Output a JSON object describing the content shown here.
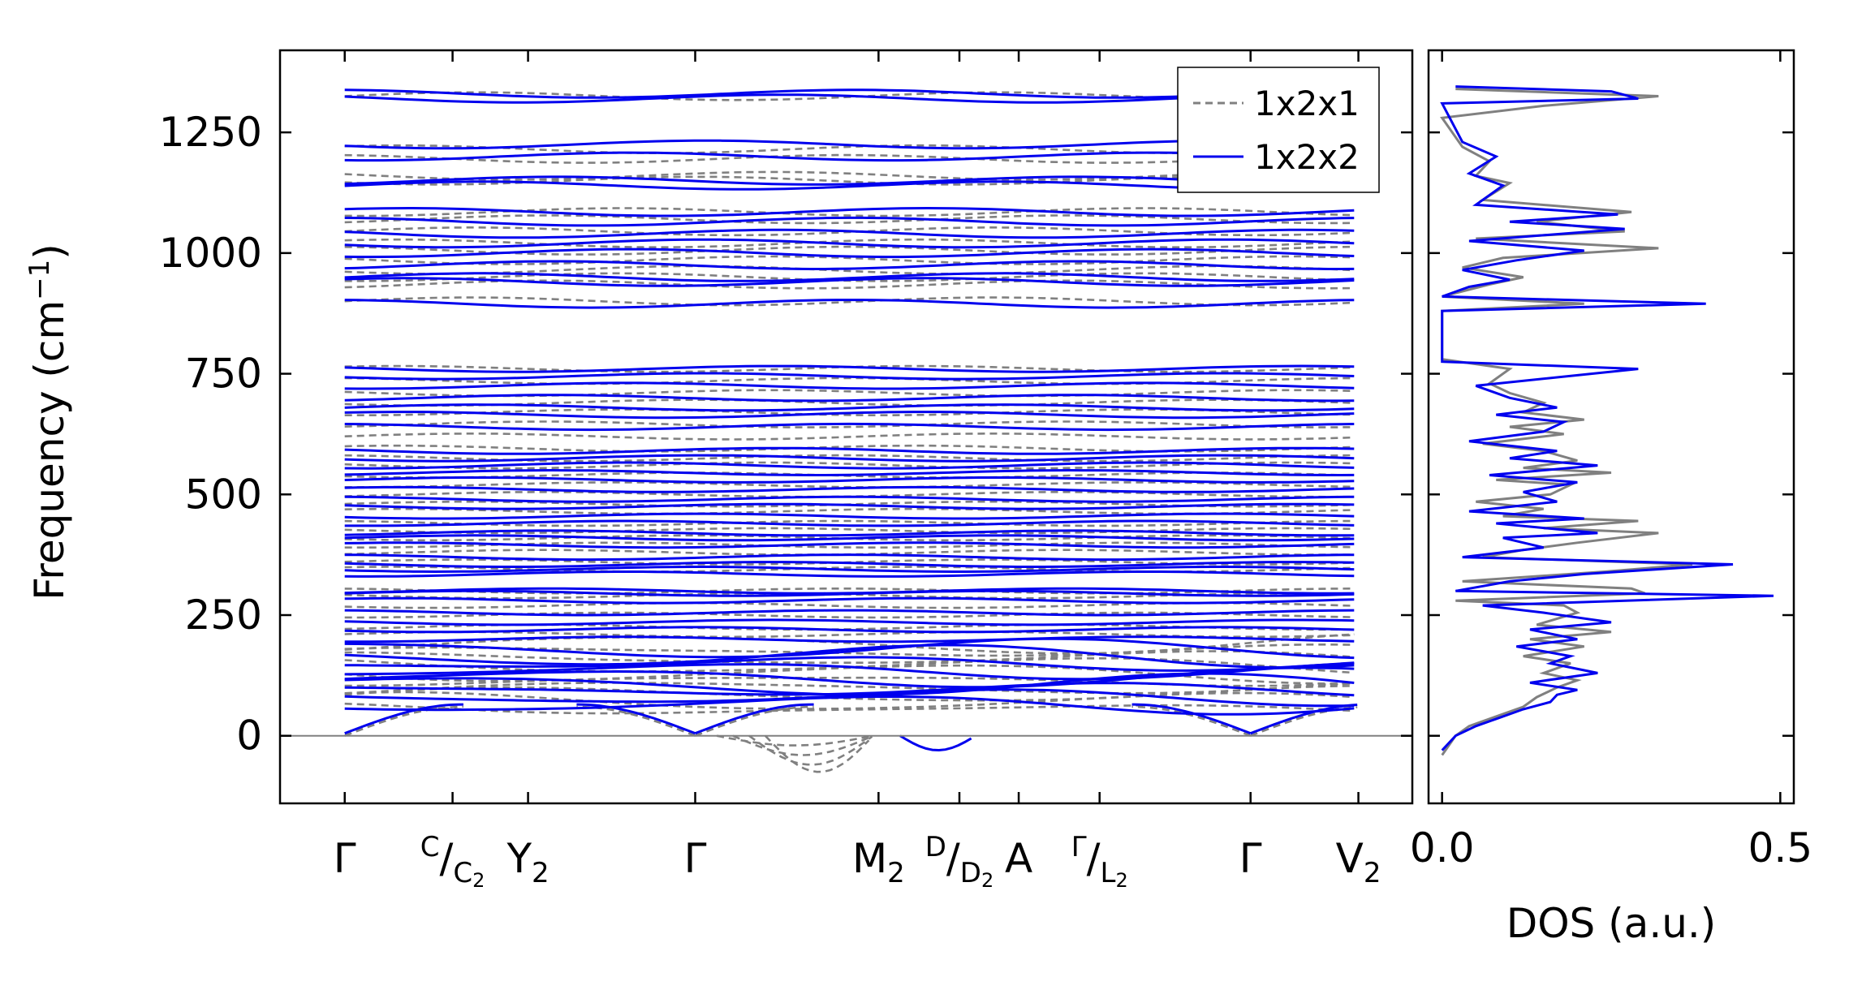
{
  "chart_data": [
    {
      "type": "line",
      "panel": "band-structure",
      "ylabel": "Frequency (cm",
      "ylabel_sup": "−1",
      "ylabel_close": ")",
      "xlabel": "",
      "ylim": [
        -140,
        1420
      ],
      "yticks": [
        0,
        250,
        500,
        750,
        1000,
        1250
      ],
      "k_path": {
        "labels": [
          {
            "main": "Γ"
          },
          {
            "pre_sup": "C",
            "main": "/",
            "sub": "C",
            "sub_sub": "2"
          },
          {
            "main": "Y",
            "sub": "2"
          },
          {
            "main": "Γ"
          },
          {
            "main": "M",
            "sub": "2"
          },
          {
            "pre_sup": "D",
            "main": "/",
            "sub": "D",
            "sub_sub": "2"
          },
          {
            "main": "A"
          },
          {
            "pre_sup": "Γ",
            "main": "/",
            "sub": "L",
            "sub_sub": "2"
          },
          {
            "main": "Γ"
          },
          {
            "main": "V",
            "sub": "2"
          }
        ],
        "positions": [
          0.0,
          1.0,
          1.7,
          3.25,
          4.95,
          5.7,
          6.25,
          7.0,
          8.4,
          9.4
        ],
        "segment_breaks": [
          1.7,
          4.95,
          7.0
        ]
      },
      "reference_line_y": 0,
      "legend": {
        "placement": "upper-right"
      },
      "series": [
        {
          "name": "1x2x1",
          "style": "dashed",
          "color": "#808080",
          "flat_bands": [
            1325,
            1215,
            1195,
            1160,
            1150,
            1085,
            1070,
            1045,
            1020,
            1005,
            985,
            965,
            950,
            935,
            900,
            760,
            735,
            710,
            690,
            670,
            645,
            620,
            595,
            575,
            560,
            540,
            520,
            500,
            480,
            465,
            440,
            425,
            410,
            395,
            380,
            360,
            345,
            300,
            290,
            270,
            250,
            225,
            210,
            190,
            175,
            160,
            145,
            130,
            115,
            100,
            85,
            70,
            55
          ],
          "soft_modes": [
            -20,
            -40,
            -60,
            -75
          ]
        },
        {
          "name": "1x2x2",
          "style": "solid",
          "color": "#0000ee",
          "flat_bands": [
            1330,
            1320,
            1225,
            1200,
            1150,
            1140,
            1085,
            1065,
            1040,
            1020,
            1000,
            975,
            950,
            940,
            895,
            760,
            745,
            725,
            700,
            680,
            665,
            640,
            590,
            575,
            560,
            545,
            530,
            510,
            490,
            475,
            455,
            440,
            420,
            410,
            395,
            370,
            355,
            345,
            335,
            300,
            295,
            280,
            255,
            235,
            220,
            200,
            180,
            165,
            150,
            135,
            120,
            105,
            95,
            80,
            65
          ],
          "soft_modes": [
            -30
          ]
        }
      ]
    },
    {
      "type": "line",
      "panel": "dos",
      "xlabel": "DOS (a.u.)",
      "xlim": [
        -0.02,
        0.52
      ],
      "xticks": [
        "0.0",
        "0.5"
      ],
      "xtick_values": [
        0.0,
        0.5
      ],
      "ylim": [
        -140,
        1420
      ],
      "series": [
        {
          "name": "1x2x1",
          "color": "#808080",
          "points": [
            [
              0.0,
              -40
            ],
            [
              0.01,
              -20
            ],
            [
              0.02,
              0
            ],
            [
              0.04,
              20
            ],
            [
              0.09,
              45
            ],
            [
              0.12,
              60
            ],
            [
              0.14,
              80
            ],
            [
              0.17,
              100
            ],
            [
              0.2,
              115
            ],
            [
              0.15,
              130
            ],
            [
              0.19,
              150
            ],
            [
              0.12,
              165
            ],
            [
              0.21,
              185
            ],
            [
              0.13,
              200
            ],
            [
              0.25,
              215
            ],
            [
              0.14,
              230
            ],
            [
              0.2,
              255
            ],
            [
              0.18,
              270
            ],
            [
              0.02,
              280
            ],
            [
              0.3,
              295
            ],
            [
              0.28,
              305
            ],
            [
              0.03,
              320
            ],
            [
              0.24,
              340
            ],
            [
              0.37,
              355
            ],
            [
              0.06,
              370
            ],
            [
              0.12,
              385
            ],
            [
              0.2,
              400
            ],
            [
              0.32,
              420
            ],
            [
              0.15,
              430
            ],
            [
              0.29,
              445
            ],
            [
              0.09,
              455
            ],
            [
              0.15,
              470
            ],
            [
              0.05,
              485
            ],
            [
              0.16,
              500
            ],
            [
              0.19,
              520
            ],
            [
              0.08,
              530
            ],
            [
              0.25,
              545
            ],
            [
              0.12,
              555
            ],
            [
              0.2,
              570
            ],
            [
              0.15,
              590
            ],
            [
              0.06,
              605
            ],
            [
              0.18,
              625
            ],
            [
              0.1,
              640
            ],
            [
              0.21,
              655
            ],
            [
              0.12,
              670
            ],
            [
              0.15,
              690
            ],
            [
              0.1,
              710
            ],
            [
              0.07,
              730
            ],
            [
              0.1,
              760
            ],
            [
              0.0,
              780
            ],
            [
              0.0,
              880
            ],
            [
              0.21,
              895
            ],
            [
              0.0,
              910
            ],
            [
              0.07,
              935
            ],
            [
              0.12,
              950
            ],
            [
              0.03,
              970
            ],
            [
              0.09,
              990
            ],
            [
              0.32,
              1010
            ],
            [
              0.05,
              1030
            ],
            [
              0.27,
              1045
            ],
            [
              0.14,
              1065
            ],
            [
              0.28,
              1085
            ],
            [
              0.06,
              1110
            ],
            [
              0.1,
              1145
            ],
            [
              0.05,
              1160
            ],
            [
              0.07,
              1190
            ],
            [
              0.03,
              1220
            ],
            [
              0.0,
              1280
            ],
            [
              0.15,
              1305
            ],
            [
              0.32,
              1325
            ],
            [
              0.02,
              1340
            ]
          ]
        },
        {
          "name": "1x2x2",
          "color": "#0000ee",
          "points": [
            [
              0.0,
              -30
            ],
            [
              0.02,
              0
            ],
            [
              0.05,
              20
            ],
            [
              0.08,
              35
            ],
            [
              0.12,
              55
            ],
            [
              0.16,
              70
            ],
            [
              0.17,
              85
            ],
            [
              0.2,
              95
            ],
            [
              0.13,
              110
            ],
            [
              0.23,
              130
            ],
            [
              0.16,
              150
            ],
            [
              0.19,
              165
            ],
            [
              0.11,
              185
            ],
            [
              0.2,
              200
            ],
            [
              0.13,
              220
            ],
            [
              0.25,
              235
            ],
            [
              0.15,
              255
            ],
            [
              0.06,
              270
            ],
            [
              0.49,
              290
            ],
            [
              0.02,
              300
            ],
            [
              0.1,
              320
            ],
            [
              0.21,
              335
            ],
            [
              0.43,
              355
            ],
            [
              0.03,
              370
            ],
            [
              0.15,
              390
            ],
            [
              0.09,
              410
            ],
            [
              0.23,
              420
            ],
            [
              0.08,
              440
            ],
            [
              0.21,
              450
            ],
            [
              0.04,
              465
            ],
            [
              0.17,
              485
            ],
            [
              0.12,
              505
            ],
            [
              0.2,
              525
            ],
            [
              0.07,
              540
            ],
            [
              0.23,
              560
            ],
            [
              0.1,
              575
            ],
            [
              0.17,
              590
            ],
            [
              0.04,
              610
            ],
            [
              0.15,
              630
            ],
            [
              0.18,
              650
            ],
            [
              0.08,
              665
            ],
            [
              0.17,
              680
            ],
            [
              0.1,
              700
            ],
            [
              0.05,
              725
            ],
            [
              0.29,
              760
            ],
            [
              0.0,
              775
            ],
            [
              0.0,
              880
            ],
            [
              0.39,
              895
            ],
            [
              0.0,
              910
            ],
            [
              0.04,
              930
            ],
            [
              0.1,
              945
            ],
            [
              0.03,
              965
            ],
            [
              0.11,
              985
            ],
            [
              0.21,
              1005
            ],
            [
              0.04,
              1025
            ],
            [
              0.27,
              1050
            ],
            [
              0.1,
              1065
            ],
            [
              0.26,
              1080
            ],
            [
              0.05,
              1100
            ],
            [
              0.09,
              1140
            ],
            [
              0.04,
              1165
            ],
            [
              0.08,
              1200
            ],
            [
              0.03,
              1230
            ],
            [
              0.0,
              1310
            ],
            [
              0.29,
              1320
            ],
            [
              0.25,
              1335
            ],
            [
              0.02,
              1345
            ]
          ]
        }
      ]
    }
  ]
}
